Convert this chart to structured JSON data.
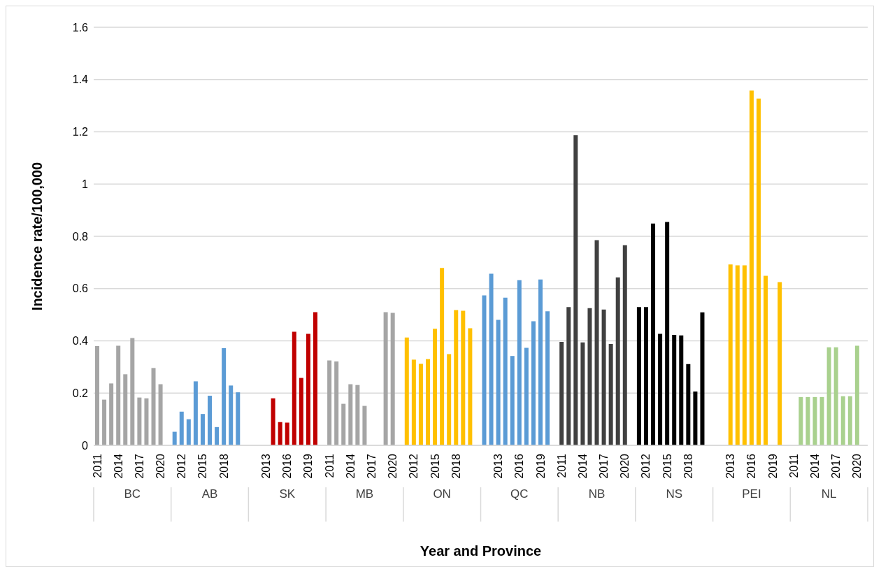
{
  "chart_data": {
    "type": "bar",
    "xlabel": "Year and Province",
    "ylabel": "Incidence rate/100,000",
    "ylim": [
      0,
      1.6
    ],
    "yticks": [
      0,
      0.2,
      0.4,
      0.6,
      0.8,
      1,
      1.2,
      1.4,
      1.6
    ],
    "grid": "y",
    "annotations": [
      "BC",
      "AB",
      "SK",
      "MB",
      "ON",
      "QC",
      "NB",
      "NS",
      "PEI",
      "NL"
    ],
    "categories": [
      "2011",
      null,
      null,
      "2014",
      null,
      null,
      "2017",
      null,
      null,
      "2020",
      null,
      null,
      "2012",
      null,
      null,
      "2015",
      null,
      null,
      "2018",
      null,
      null,
      null,
      null,
      null,
      "2013",
      null,
      null,
      "2016",
      null,
      null,
      "2019",
      null,
      null,
      "2011",
      null,
      null,
      "2014",
      null,
      null,
      "2017",
      null,
      null,
      "2020",
      null,
      null,
      "2012",
      null,
      null,
      "2015",
      null,
      null,
      "2018",
      null,
      null,
      null,
      null,
      null,
      "2013",
      null,
      null,
      "2016",
      null,
      null,
      "2019",
      null,
      null,
      "2011",
      null,
      null,
      "2014",
      null,
      null,
      "2017",
      null,
      null,
      "2020",
      null,
      null,
      "2012",
      null,
      null,
      "2015",
      null,
      null,
      "2018",
      null,
      null,
      null,
      null,
      null,
      "2013",
      null,
      null,
      "2016",
      null,
      null,
      "2019",
      null,
      null,
      "2011",
      null,
      null,
      "2014",
      null,
      null,
      "2017",
      null,
      null,
      "2020",
      null
    ],
    "series": [
      {
        "color": "#a5a5a5",
        "values": [
          0.38,
          0.175,
          0.237,
          0.381,
          0.272,
          0.411,
          0.183,
          0.18,
          0.296,
          0.234,
          null,
          null,
          null,
          null,
          null,
          null,
          null,
          null,
          null,
          null,
          null,
          null,
          null,
          null,
          null,
          null,
          null,
          null,
          null,
          null,
          null,
          null,
          null,
          null,
          null,
          null,
          null,
          null,
          null,
          null,
          null,
          null,
          null,
          null,
          null,
          null,
          null,
          null,
          null,
          null,
          null,
          null,
          null,
          null,
          null,
          null,
          null,
          null,
          null,
          null,
          null,
          null,
          null,
          null,
          null,
          null,
          null,
          null,
          null,
          null,
          null,
          null,
          null,
          null,
          null,
          null,
          null,
          null,
          null,
          null,
          null,
          null,
          null,
          null,
          null,
          null,
          null,
          null,
          null,
          null,
          null,
          null,
          null,
          null,
          null,
          null,
          null,
          null,
          null,
          null,
          null,
          null,
          null,
          null,
          null,
          null,
          null,
          null,
          null,
          null
        ]
      },
      {
        "color": "#5b9bd5",
        "values": [
          null,
          null,
          null,
          null,
          null,
          null,
          null,
          null,
          null,
          null,
          null,
          0.052,
          0.129,
          0.1,
          0.245,
          0.12,
          0.19,
          0.07,
          0.372,
          0.229,
          0.203,
          null,
          null,
          null,
          null,
          null,
          null,
          null,
          null,
          null,
          null,
          null,
          null,
          null,
          null,
          null,
          null,
          null,
          null,
          null,
          null,
          null,
          null,
          null,
          null,
          null,
          null,
          null,
          null,
          null,
          null,
          null,
          null,
          null,
          null,
          null,
          null,
          null,
          null,
          null,
          null,
          null,
          null,
          null,
          null,
          null,
          null,
          null,
          null,
          null,
          null,
          null,
          null,
          null,
          null,
          null,
          null,
          null,
          null,
          null,
          null,
          null,
          null,
          null,
          null,
          null,
          null,
          null,
          null,
          null,
          null,
          null,
          null,
          null,
          null,
          null,
          null,
          null,
          null,
          null,
          null,
          null,
          null,
          null,
          null,
          null,
          null,
          null,
          null,
          null
        ]
      },
      {
        "color": "#c00000",
        "values": [
          null,
          null,
          null,
          null,
          null,
          null,
          null,
          null,
          null,
          null,
          null,
          null,
          null,
          null,
          null,
          null,
          null,
          null,
          null,
          null,
          null,
          null,
          null,
          null,
          null,
          0.18,
          0.089,
          0.087,
          0.435,
          0.258,
          0.427,
          0.51,
          null,
          null,
          null,
          null,
          null,
          null,
          null,
          null,
          null,
          null,
          null,
          null,
          null,
          null,
          null,
          null,
          null,
          null,
          null,
          null,
          null,
          null,
          null,
          null,
          null,
          null,
          null,
          null,
          null,
          null,
          null,
          null,
          null,
          null,
          null,
          null,
          null,
          null,
          null,
          null,
          null,
          null,
          null,
          null,
          null,
          null,
          null,
          null,
          null,
          null,
          null,
          null,
          null,
          null,
          null,
          null,
          null,
          null,
          null,
          null,
          null,
          null,
          null,
          null,
          null,
          null,
          null,
          null,
          null,
          null,
          null,
          null,
          null,
          null,
          null,
          null,
          null,
          null
        ]
      },
      {
        "color": "#a5a5a5",
        "values": [
          null,
          null,
          null,
          null,
          null,
          null,
          null,
          null,
          null,
          null,
          null,
          null,
          null,
          null,
          null,
          null,
          null,
          null,
          null,
          null,
          null,
          null,
          null,
          null,
          null,
          null,
          null,
          null,
          null,
          null,
          null,
          null,
          null,
          0.325,
          0.321,
          0.159,
          0.234,
          0.231,
          0.151,
          null,
          null,
          0.51,
          0.507,
          null,
          null,
          null,
          null,
          null,
          null,
          null,
          null,
          null,
          null,
          null,
          null,
          null,
          null,
          null,
          null,
          null,
          null,
          null,
          null,
          null,
          null,
          null,
          null,
          null,
          null,
          null,
          null,
          null,
          null,
          null,
          null,
          null,
          null,
          null,
          null,
          null,
          null,
          null,
          null,
          null,
          null,
          null,
          null,
          null,
          null,
          null,
          null,
          null,
          null,
          null,
          null,
          null,
          null,
          null,
          null,
          null,
          null,
          null,
          null,
          null,
          null,
          null,
          null,
          null,
          null,
          null
        ]
      },
      {
        "color": "#ffc000",
        "values": [
          null,
          null,
          null,
          null,
          null,
          null,
          null,
          null,
          null,
          null,
          null,
          null,
          null,
          null,
          null,
          null,
          null,
          null,
          null,
          null,
          null,
          null,
          null,
          null,
          null,
          null,
          null,
          null,
          null,
          null,
          null,
          null,
          null,
          null,
          null,
          null,
          null,
          null,
          null,
          null,
          null,
          null,
          null,
          null,
          0.413,
          0.328,
          0.312,
          0.33,
          0.446,
          0.679,
          0.349,
          0.518,
          0.515,
          0.448,
          null,
          null,
          null,
          null,
          null,
          null,
          null,
          null,
          null,
          null,
          null,
          null,
          null,
          null,
          null,
          null,
          null,
          null,
          null,
          null,
          null,
          null,
          null,
          null,
          null,
          null,
          null,
          null,
          null,
          null,
          null,
          null,
          null,
          null,
          null,
          null,
          null,
          null,
          null,
          null,
          null,
          null,
          null,
          null,
          null,
          null,
          null,
          null,
          null,
          null,
          null,
          null,
          null,
          null,
          null,
          null
        ]
      },
      {
        "color": "#5b9bd5",
        "values": [
          null,
          null,
          null,
          null,
          null,
          null,
          null,
          null,
          null,
          null,
          null,
          null,
          null,
          null,
          null,
          null,
          null,
          null,
          null,
          null,
          null,
          null,
          null,
          null,
          null,
          null,
          null,
          null,
          null,
          null,
          null,
          null,
          null,
          null,
          null,
          null,
          null,
          null,
          null,
          null,
          null,
          null,
          null,
          null,
          null,
          null,
          null,
          null,
          null,
          null,
          null,
          null,
          null,
          null,
          null,
          0.574,
          0.657,
          0.48,
          0.565,
          0.342,
          0.632,
          0.373,
          0.475,
          0.635,
          0.513,
          null,
          null,
          null,
          null,
          null,
          null,
          null,
          null,
          null,
          null,
          null,
          null,
          null,
          null,
          null,
          null,
          null,
          null,
          null,
          null,
          null,
          null,
          null,
          null,
          null,
          null,
          null,
          null,
          null,
          null,
          null,
          null,
          null,
          null,
          null,
          null,
          null,
          null,
          null,
          null,
          null,
          null,
          null,
          null,
          null
        ]
      },
      {
        "color": "#404040",
        "values": [
          null,
          null,
          null,
          null,
          null,
          null,
          null,
          null,
          null,
          null,
          null,
          null,
          null,
          null,
          null,
          null,
          null,
          null,
          null,
          null,
          null,
          null,
          null,
          null,
          null,
          null,
          null,
          null,
          null,
          null,
          null,
          null,
          null,
          null,
          null,
          null,
          null,
          null,
          null,
          null,
          null,
          null,
          null,
          null,
          null,
          null,
          null,
          null,
          null,
          null,
          null,
          null,
          null,
          null,
          null,
          null,
          null,
          null,
          null,
          null,
          null,
          null,
          null,
          null,
          null,
          null,
          0.396,
          0.529,
          1.187,
          0.394,
          0.525,
          0.785,
          0.52,
          0.388,
          0.643,
          0.766,
          null,
          null,
          null,
          null,
          null,
          null,
          null,
          null,
          null,
          null,
          null,
          null,
          null,
          null,
          null,
          null,
          null,
          null,
          null,
          null,
          null,
          null,
          null,
          null,
          null,
          null,
          null,
          null,
          null,
          null,
          null,
          null,
          null,
          null
        ]
      },
      {
        "color": "#000000",
        "values": [
          null,
          null,
          null,
          null,
          null,
          null,
          null,
          null,
          null,
          null,
          null,
          null,
          null,
          null,
          null,
          null,
          null,
          null,
          null,
          null,
          null,
          null,
          null,
          null,
          null,
          null,
          null,
          null,
          null,
          null,
          null,
          null,
          null,
          null,
          null,
          null,
          null,
          null,
          null,
          null,
          null,
          null,
          null,
          null,
          null,
          null,
          null,
          null,
          null,
          null,
          null,
          null,
          null,
          null,
          null,
          null,
          null,
          null,
          null,
          null,
          null,
          null,
          null,
          null,
          null,
          null,
          null,
          null,
          null,
          null,
          null,
          null,
          null,
          null,
          null,
          null,
          null,
          0.529,
          0.529,
          0.849,
          0.427,
          0.855,
          0.423,
          0.421,
          0.311,
          0.206,
          0.509,
          null,
          null,
          null,
          null,
          null,
          null,
          null,
          null,
          null,
          null,
          null,
          null,
          null,
          null,
          null,
          null,
          null,
          null,
          null,
          null,
          null,
          null,
          null
        ]
      },
      {
        "color": "#ffc000",
        "values": [
          null,
          null,
          null,
          null,
          null,
          null,
          null,
          null,
          null,
          null,
          null,
          null,
          null,
          null,
          null,
          null,
          null,
          null,
          null,
          null,
          null,
          null,
          null,
          null,
          null,
          null,
          null,
          null,
          null,
          null,
          null,
          null,
          null,
          null,
          null,
          null,
          null,
          null,
          null,
          null,
          null,
          null,
          null,
          null,
          null,
          null,
          null,
          null,
          null,
          null,
          null,
          null,
          null,
          null,
          null,
          null,
          null,
          null,
          null,
          null,
          null,
          null,
          null,
          null,
          null,
          null,
          null,
          null,
          null,
          null,
          null,
          null,
          null,
          null,
          null,
          null,
          null,
          null,
          null,
          null,
          null,
          null,
          null,
          null,
          null,
          null,
          null,
          null,
          null,
          null,
          0.692,
          0.689,
          0.689,
          1.358,
          1.327,
          0.649,
          null,
          0.625,
          null,
          null,
          null,
          null,
          null,
          null,
          null,
          null,
          null,
          null,
          null,
          null
        ]
      },
      {
        "color": "#a9d18e",
        "values": [
          null,
          null,
          null,
          null,
          null,
          null,
          null,
          null,
          null,
          null,
          null,
          null,
          null,
          null,
          null,
          null,
          null,
          null,
          null,
          null,
          null,
          null,
          null,
          null,
          null,
          null,
          null,
          null,
          null,
          null,
          null,
          null,
          null,
          null,
          null,
          null,
          null,
          null,
          null,
          null,
          null,
          null,
          null,
          null,
          null,
          null,
          null,
          null,
          null,
          null,
          null,
          null,
          null,
          null,
          null,
          null,
          null,
          null,
          null,
          null,
          null,
          null,
          null,
          null,
          null,
          null,
          null,
          null,
          null,
          null,
          null,
          null,
          null,
          null,
          null,
          null,
          null,
          null,
          null,
          null,
          null,
          null,
          null,
          null,
          null,
          null,
          null,
          null,
          null,
          null,
          null,
          null,
          null,
          null,
          null,
          null,
          null,
          null,
          null,
          null,
          0.185,
          0.185,
          0.185,
          0.185,
          0.375,
          0.375,
          0.188,
          0.188,
          0.381,
          null
        ]
      }
    ]
  }
}
